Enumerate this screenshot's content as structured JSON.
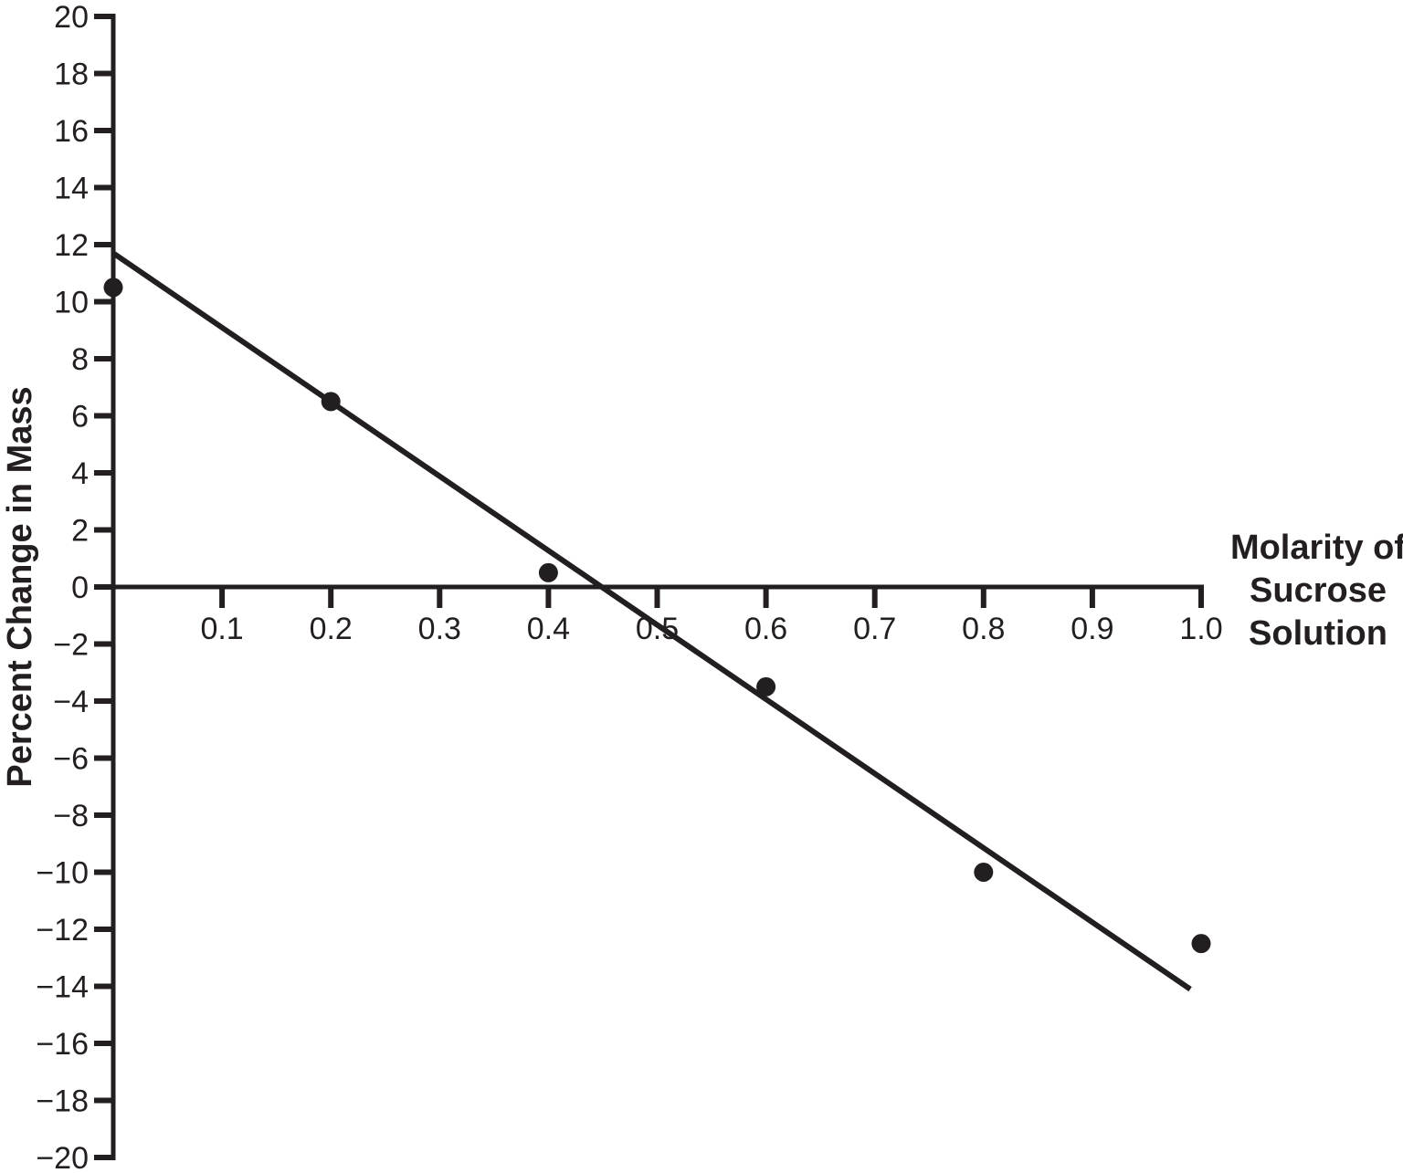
{
  "chart_data": {
    "type": "scatter",
    "title": "",
    "ylabel": "Percent Change in Mass",
    "xlabel": "Molarity of Sucrose Solution",
    "xlabel_lines": [
      "Molarity of",
      "Sucrose",
      "Solution"
    ],
    "xlim": [
      0,
      1.0
    ],
    "ylim": [
      -20,
      20
    ],
    "grid": false,
    "legend": "none",
    "ink_color": "#231f20",
    "background_color": "#ffffff",
    "points": [
      {
        "x": 0.0,
        "y": 10.5
      },
      {
        "x": 0.2,
        "y": 6.5
      },
      {
        "x": 0.4,
        "y": 0.5
      },
      {
        "x": 0.6,
        "y": -3.5
      },
      {
        "x": 0.8,
        "y": -10.0
      },
      {
        "x": 1.0,
        "y": -12.5
      }
    ],
    "trend_line": {
      "x1": 0.0,
      "y1": 11.7,
      "x2": 0.99,
      "y2": -14.1
    },
    "x_ticks": [
      {
        "value": 0.1,
        "label": "0.1"
      },
      {
        "value": 0.2,
        "label": "0.2"
      },
      {
        "value": 0.3,
        "label": "0.3"
      },
      {
        "value": 0.4,
        "label": "0.4"
      },
      {
        "value": 0.5,
        "label": "0.5"
      },
      {
        "value": 0.6,
        "label": "0.6"
      },
      {
        "value": 0.7,
        "label": "0.7"
      },
      {
        "value": 0.8,
        "label": "0.8"
      },
      {
        "value": 0.9,
        "label": "0.9"
      },
      {
        "value": 1.0,
        "label": "1.0"
      }
    ],
    "y_ticks": [
      {
        "value": 20,
        "label": "20"
      },
      {
        "value": 18,
        "label": "18"
      },
      {
        "value": 16,
        "label": "16"
      },
      {
        "value": 14,
        "label": "14"
      },
      {
        "value": 12,
        "label": "12"
      },
      {
        "value": 10,
        "label": "10"
      },
      {
        "value": 8,
        "label": "8"
      },
      {
        "value": 6,
        "label": "6"
      },
      {
        "value": 4,
        "label": "4"
      },
      {
        "value": 2,
        "label": "2"
      },
      {
        "value": 0,
        "label": "0"
      },
      {
        "value": -2,
        "label": "−2"
      },
      {
        "value": -4,
        "label": "−4"
      },
      {
        "value": -6,
        "label": "−6"
      },
      {
        "value": -8,
        "label": "−8"
      },
      {
        "value": -10,
        "label": "−10"
      },
      {
        "value": -12,
        "label": "−12"
      },
      {
        "value": -14,
        "label": "−14"
      },
      {
        "value": -16,
        "label": "−16"
      },
      {
        "value": -18,
        "label": "−18"
      },
      {
        "value": -20,
        "label": "−20"
      }
    ]
  }
}
